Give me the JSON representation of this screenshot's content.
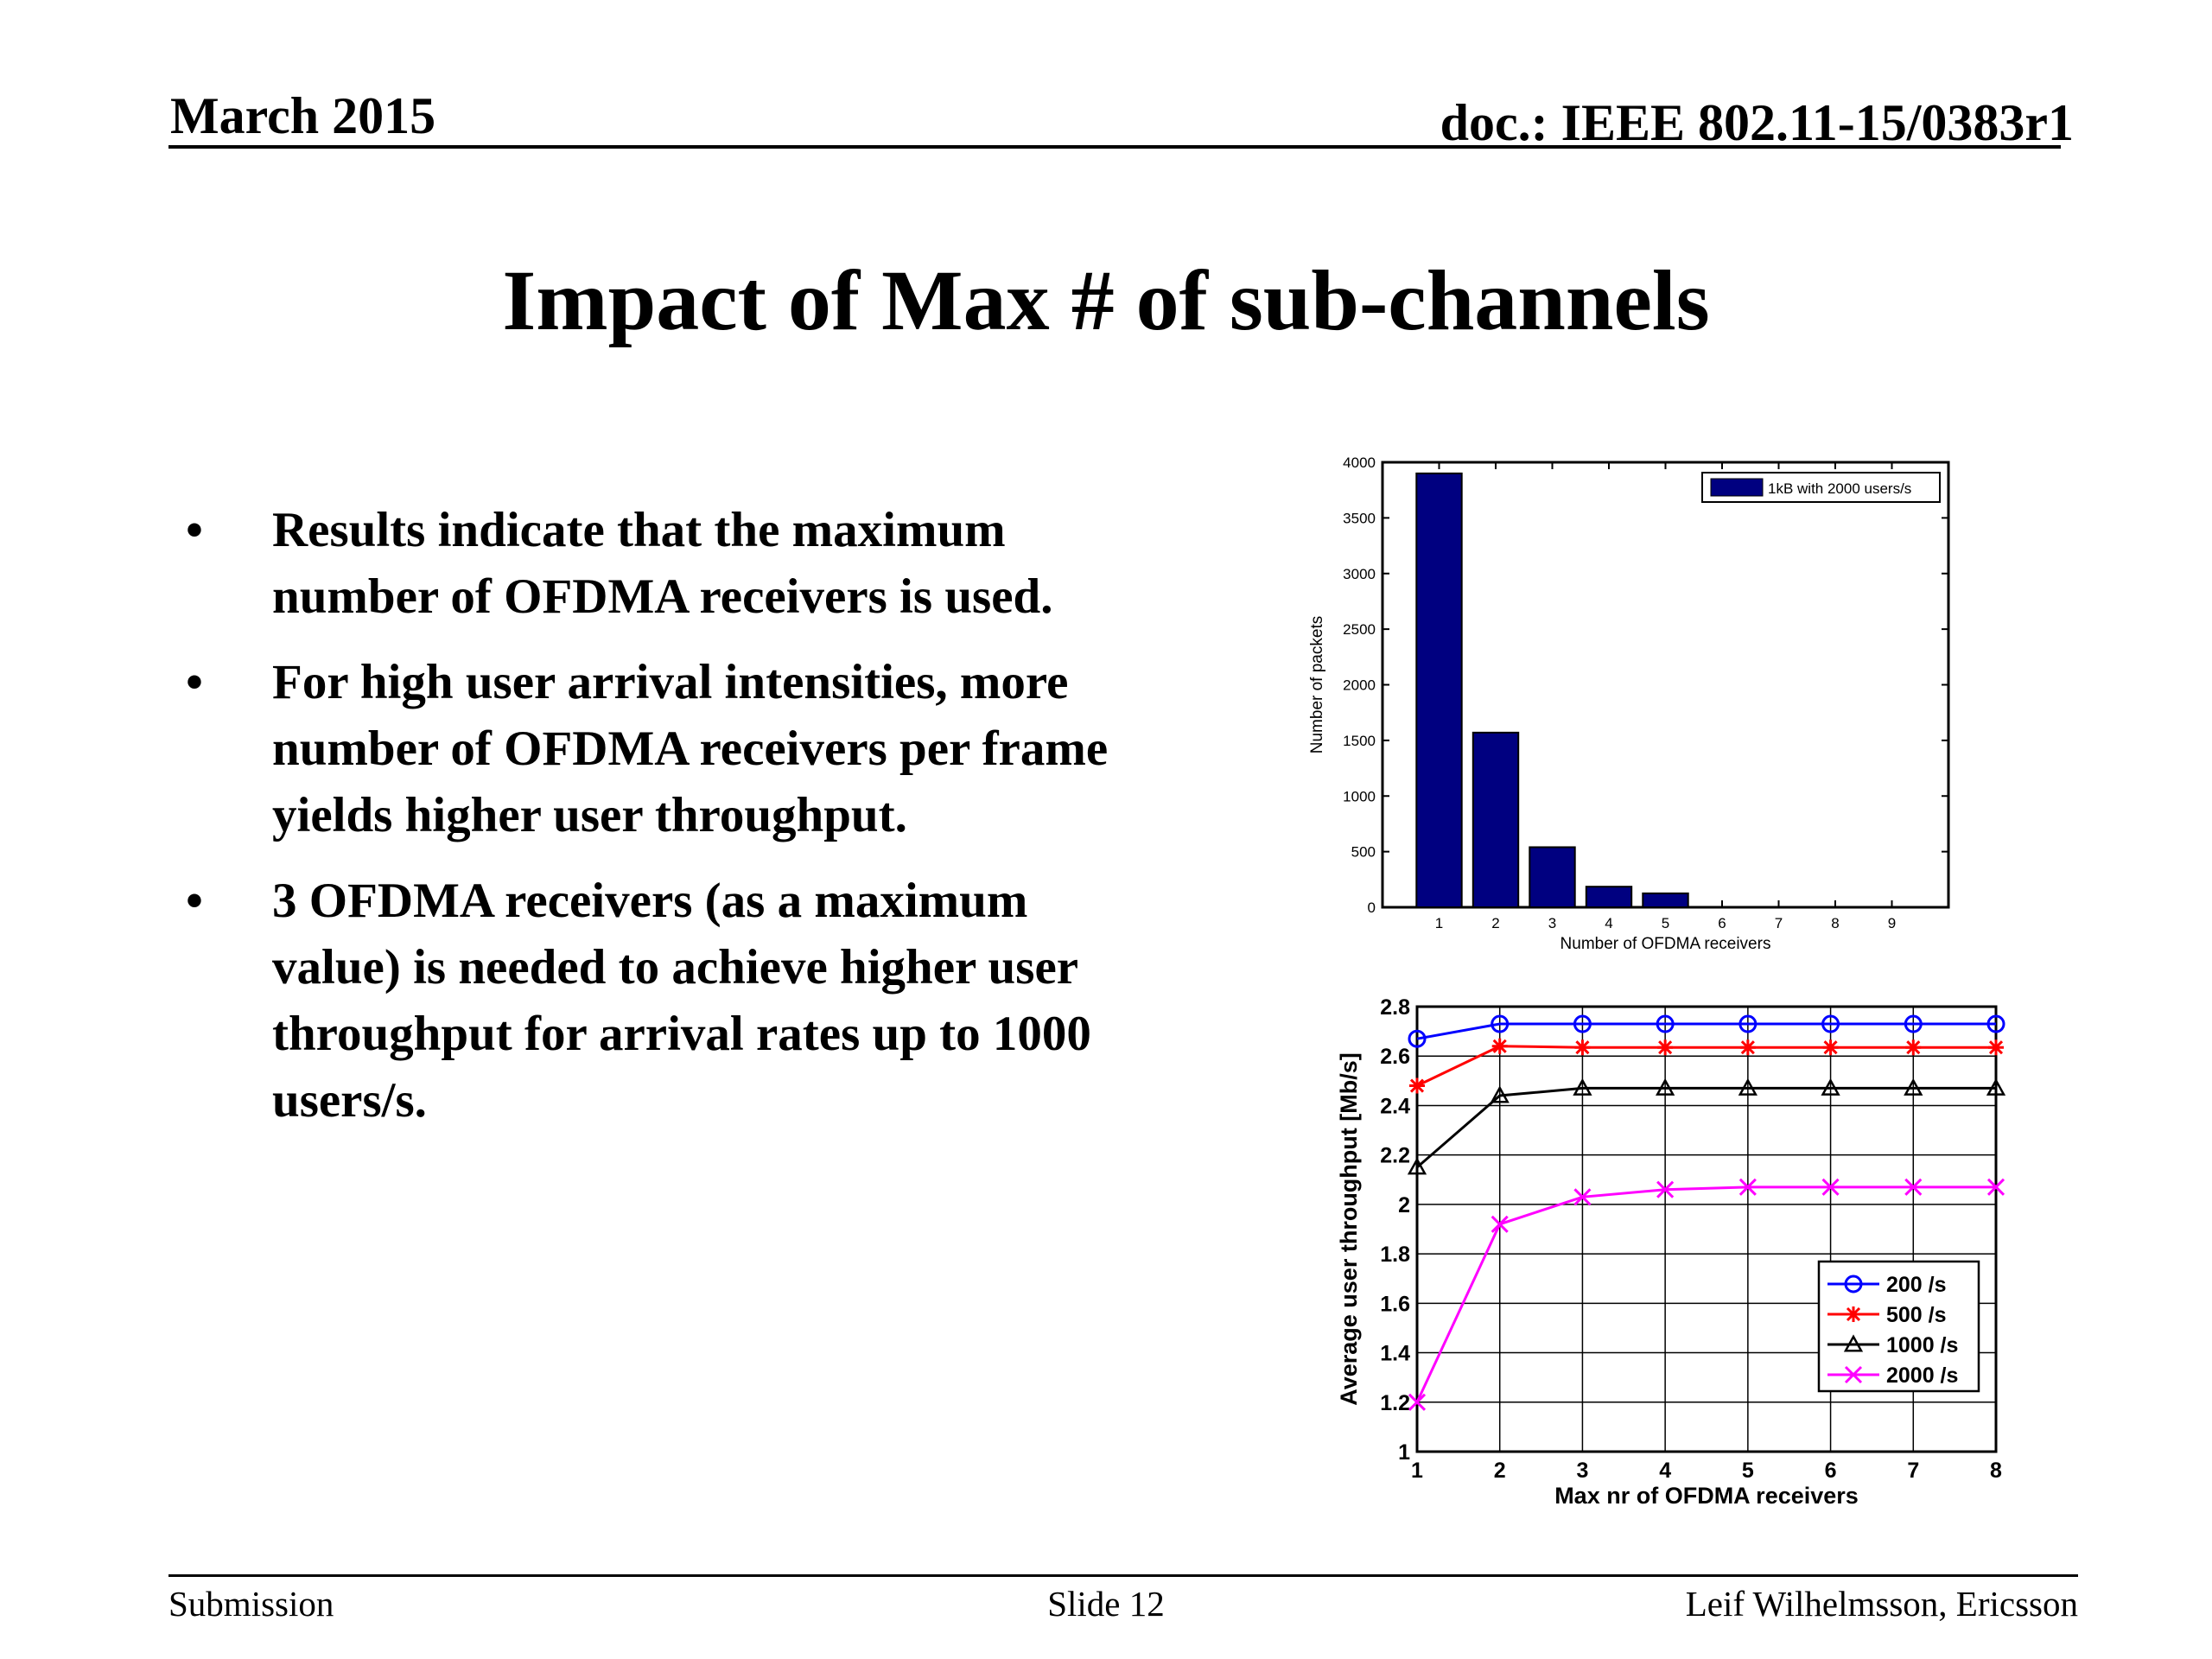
{
  "header": {
    "date": "March 2015",
    "doc": "doc.: IEEE 802.11-15/0383r1"
  },
  "title": "Impact of Max # of sub-channels",
  "bullets": [
    "Results indicate that the maximum number of OFDMA receivers is used.",
    "For high user arrival intensities, more number of OFDMA receivers per frame yields higher user throughput.",
    "3 OFDMA receivers (as a maximum value) is needed to achieve higher user throughput for arrival rates up to 1000 users/s."
  ],
  "bullet_symbol": "•",
  "footer": {
    "left": "Submission",
    "center": "Slide 12",
    "right": "Leif Wilhelmsson, Ericsson"
  },
  "chart_data": [
    {
      "type": "bar",
      "categories": [
        "1",
        "2",
        "3",
        "4",
        "5",
        "6",
        "7",
        "8",
        "9"
      ],
      "series": [
        {
          "name": "1kB with 2000 users/s",
          "values": [
            3900,
            1570,
            540,
            185,
            125,
            0,
            0,
            0,
            0
          ],
          "color": "#000080"
        }
      ],
      "xlabel": "Number of OFDMA receivers",
      "ylabel": "Number of packets",
      "ylim": [
        0,
        4000
      ],
      "yticks": [
        0,
        500,
        1000,
        1500,
        2000,
        2500,
        3000,
        3500,
        4000
      ],
      "grid": false,
      "legend": "top-right"
    },
    {
      "type": "line",
      "x": [
        1,
        2,
        3,
        4,
        5,
        6,
        7,
        8
      ],
      "series": [
        {
          "name": "200 /s",
          "values": [
            2.67,
            2.73,
            2.73,
            2.73,
            2.73,
            2.73,
            2.73,
            2.73
          ],
          "color": "#0000ff",
          "marker": "circle"
        },
        {
          "name": "500 /s",
          "values": [
            2.48,
            2.64,
            2.635,
            2.635,
            2.635,
            2.635,
            2.635,
            2.635
          ],
          "color": "#ff0000",
          "marker": "star"
        },
        {
          "name": "1000 /s",
          "values": [
            2.15,
            2.44,
            2.47,
            2.47,
            2.47,
            2.47,
            2.47,
            2.47
          ],
          "color": "#000000",
          "marker": "triangle"
        },
        {
          "name": "2000 /s",
          "values": [
            1.2,
            1.92,
            2.03,
            2.06,
            2.07,
            2.07,
            2.07,
            2.07
          ],
          "color": "#ff00ff",
          "marker": "x"
        }
      ],
      "xlabel": "Max nr of OFDMA receivers",
      "ylabel": "Average user throughput [Mb/s]",
      "xlim": [
        1,
        8
      ],
      "ylim": [
        1,
        2.8
      ],
      "yticks": [
        1,
        1.2,
        1.4,
        1.6,
        1.8,
        2,
        2.2,
        2.4,
        2.6,
        2.8
      ],
      "grid": true,
      "legend": "bottom-right"
    }
  ]
}
